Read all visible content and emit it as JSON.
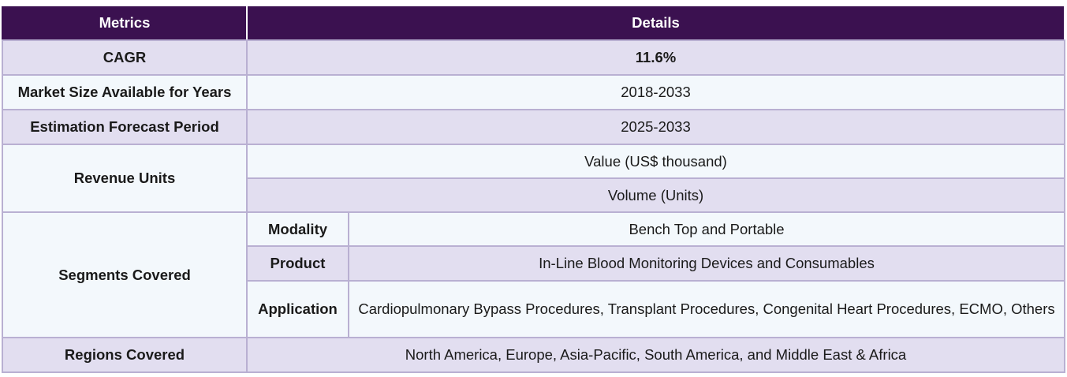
{
  "header": {
    "metrics": "Metrics",
    "details": "Details"
  },
  "cagr": {
    "label": "CAGR",
    "value": "11.6%"
  },
  "market_size": {
    "label": "Market Size Available for Years",
    "value": "2018-2033"
  },
  "forecast": {
    "label": "Estimation Forecast Period",
    "value": "2025-2033"
  },
  "revenue_units": {
    "label": "Revenue Units",
    "values": [
      "Value (US$ thousand)",
      "Volume (Units)"
    ]
  },
  "segments": {
    "label": "Segments Covered",
    "rows": [
      {
        "name": "Modality",
        "value": "Bench Top and Portable"
      },
      {
        "name": "Product",
        "value": "In-Line Blood Monitoring Devices and Consumables"
      },
      {
        "name": "Application",
        "value": "Cardiopulmonary Bypass Procedures, Transplant Procedures, Congenital Heart Procedures, ECMO, Others"
      }
    ]
  },
  "regions": {
    "label": "Regions Covered",
    "value": "North America, Europe, Asia-Pacific, South America, and Middle East & Africa"
  }
}
